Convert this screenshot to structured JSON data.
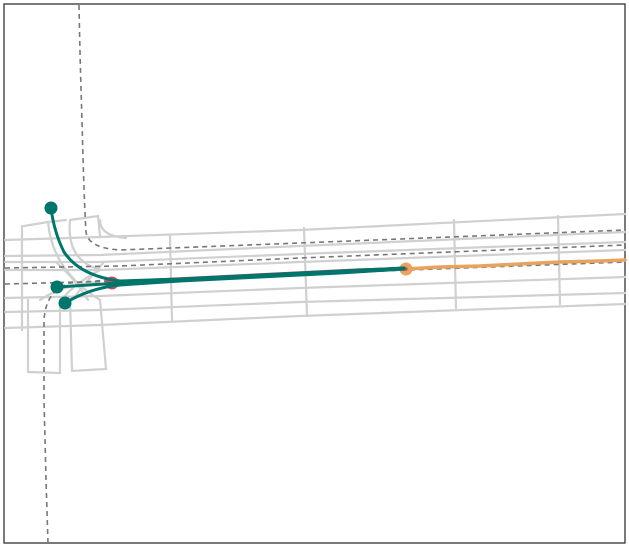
{
  "diagram": {
    "kind": "trajectory-prediction-map",
    "colors": {
      "background": "#ffffff",
      "frame": "#222222",
      "lane_boundary": "#d0d0d0",
      "lane_centerline": "#777777",
      "history": "#e8a35f",
      "ground_truth": "#d24b58",
      "prediction": "#00756b"
    },
    "legend": []
  }
}
